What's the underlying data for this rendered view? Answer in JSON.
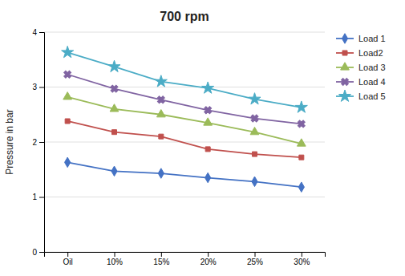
{
  "chart_data": {
    "type": "line",
    "title": "700 rpm",
    "y_label": "Pressure in bar",
    "categories": [
      "Oil",
      "10%",
      "15%",
      "20%",
      "25%",
      "30%"
    ],
    "series": [
      {
        "name": "Load 1",
        "color": "#4472C4",
        "marker": "diamond",
        "values": [
          1.63,
          1.47,
          1.43,
          1.35,
          1.28,
          1.18
        ]
      },
      {
        "name": "Load2",
        "color": "#C0504D",
        "marker": "square",
        "values": [
          2.38,
          2.18,
          2.1,
          1.87,
          1.78,
          1.72
        ]
      },
      {
        "name": "Load 3",
        "color": "#9BBB59",
        "marker": "triangle",
        "values": [
          2.82,
          2.6,
          2.5,
          2.35,
          2.18,
          1.97
        ]
      },
      {
        "name": "Load 4",
        "color": "#8064A2",
        "marker": "cross",
        "values": [
          3.23,
          2.97,
          2.77,
          2.58,
          2.43,
          2.33
        ]
      },
      {
        "name": "Load 5",
        "color": "#4BACC6",
        "marker": "star",
        "values": [
          3.63,
          3.37,
          3.1,
          2.98,
          2.78,
          2.63
        ]
      }
    ],
    "ylim": [
      0,
      4
    ],
    "yticks": [
      0,
      1,
      2,
      3,
      4
    ],
    "grid": true,
    "legend": "right"
  }
}
